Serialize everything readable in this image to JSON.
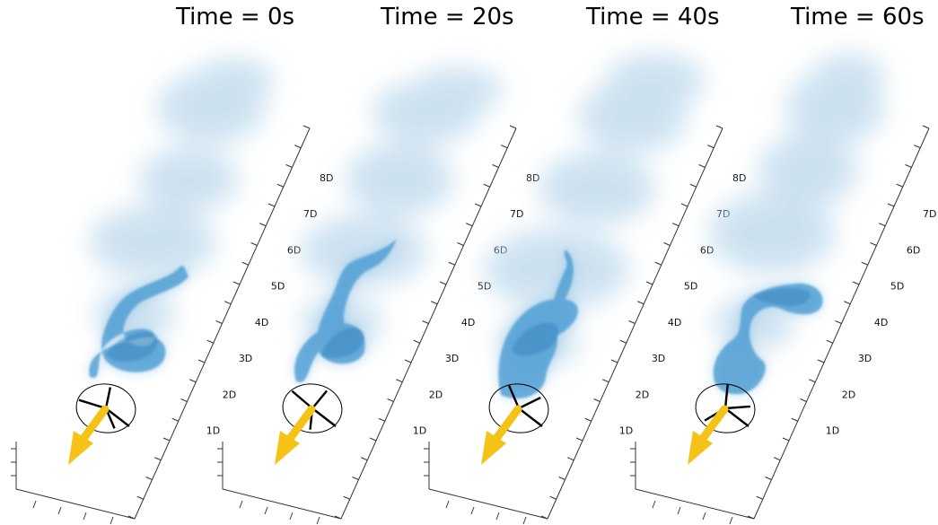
{
  "panels": [
    {
      "title": "Time = 0s"
    },
    {
      "title": "Time = 20s"
    },
    {
      "title": "Time = 40s"
    },
    {
      "title": "Time = 60s"
    }
  ],
  "distance_ticks": [
    "1D",
    "2D",
    "3D",
    "4D",
    "5D",
    "6D",
    "7D",
    "8D"
  ],
  "colors": {
    "wake_core": "#4f9fd4",
    "wake_mist": "#bcd8ec",
    "arrow": "#f5c316",
    "axes": "#333333"
  }
}
